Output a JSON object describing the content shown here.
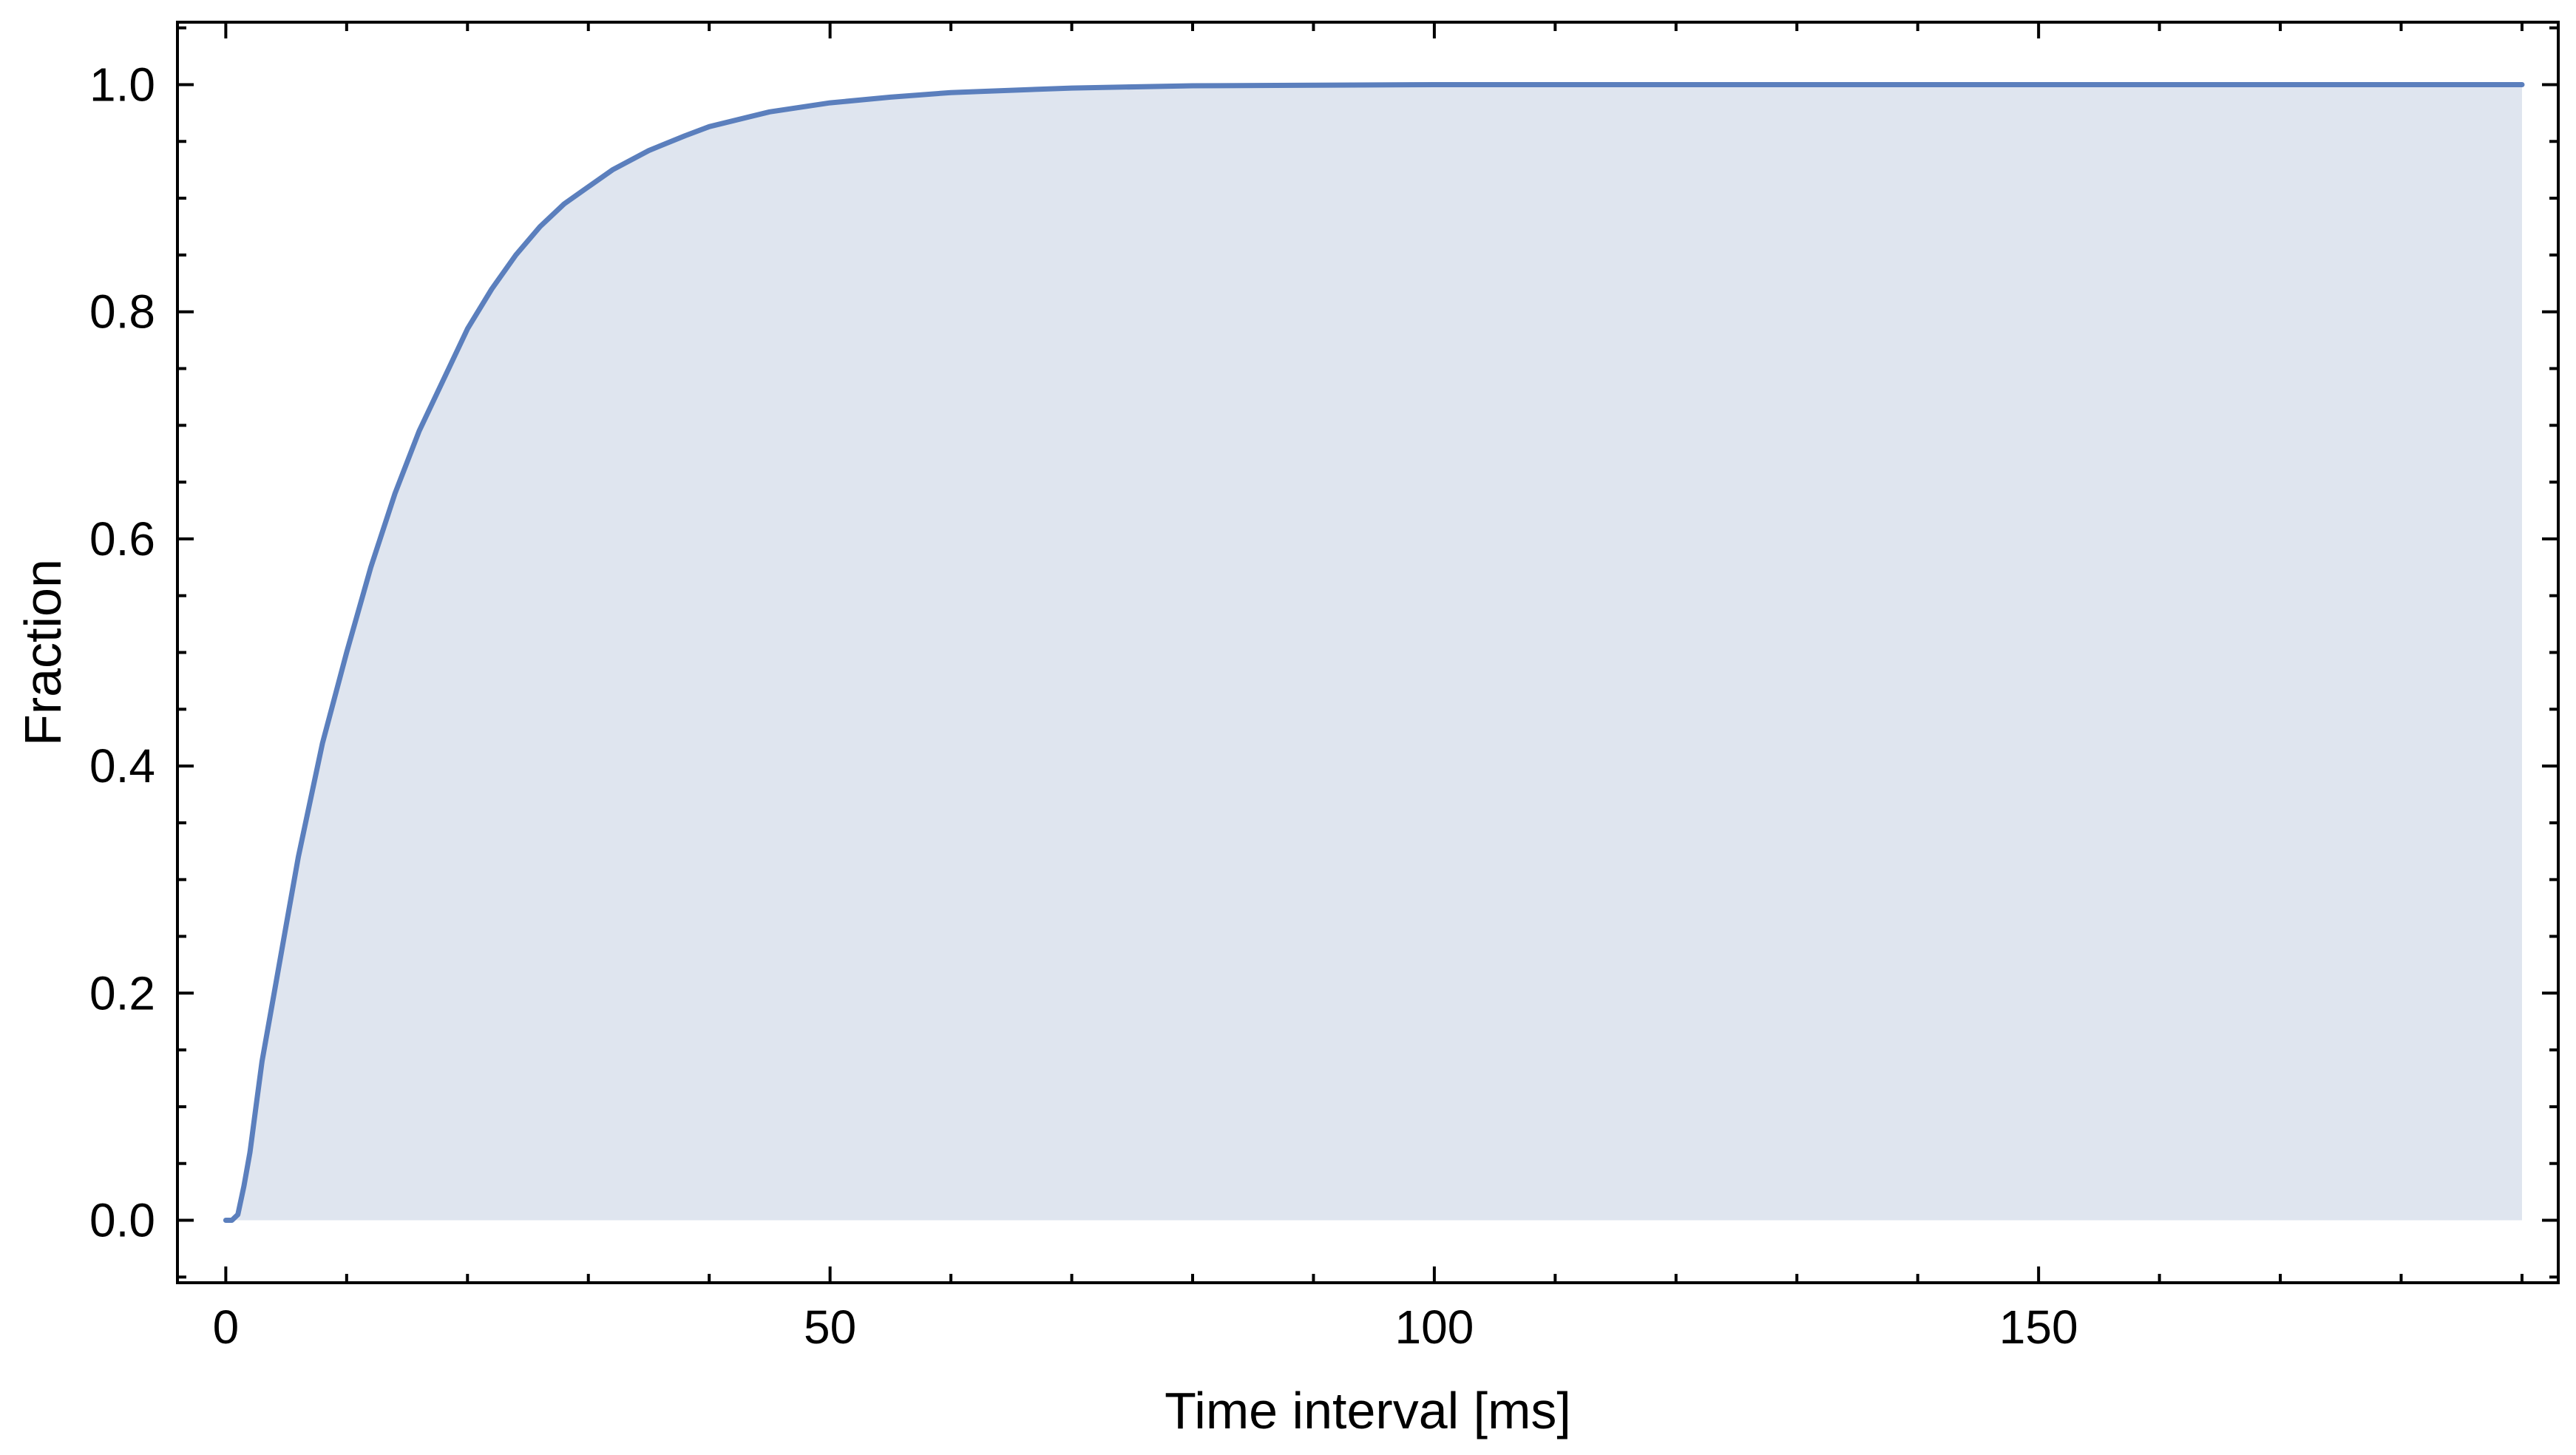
{
  "chart_data": {
    "type": "area",
    "title": "",
    "xlabel": "Time interval [ms]",
    "ylabel": "Fraction",
    "xlim": [
      -4,
      193
    ],
    "ylim": [
      -0.055,
      1.055
    ],
    "xticks": [
      0,
      50,
      100,
      150
    ],
    "xtick_labels": [
      "0",
      "50",
      "100",
      "150"
    ],
    "yticks": [
      0.0,
      0.2,
      0.4,
      0.6,
      0.8,
      1.0
    ],
    "ytick_labels": [
      "0.0",
      "0.2",
      "0.4",
      "0.6",
      "0.8",
      "1.0"
    ],
    "x_minor_step": 10,
    "y_minor_step": 0.05,
    "grid": false,
    "legend": "none",
    "colors": {
      "line": "#5b7fbd",
      "fill": "#dfe5ef",
      "frame": "#000000"
    },
    "series": [
      {
        "x": [
          0,
          0.5,
          1,
          1.5,
          2,
          2.5,
          3,
          4,
          5,
          6,
          7,
          8,
          10,
          12,
          14,
          16,
          18,
          20,
          22,
          24,
          26,
          28,
          30,
          32,
          35,
          38,
          40,
          45,
          50,
          55,
          60,
          70,
          80,
          90,
          100,
          110,
          120,
          150,
          190
        ],
        "y": [
          0.0,
          0.0,
          0.005,
          0.03,
          0.06,
          0.1,
          0.14,
          0.2,
          0.26,
          0.32,
          0.37,
          0.42,
          0.5,
          0.575,
          0.64,
          0.695,
          0.74,
          0.785,
          0.82,
          0.85,
          0.875,
          0.895,
          0.91,
          0.925,
          0.942,
          0.955,
          0.963,
          0.976,
          0.984,
          0.989,
          0.993,
          0.997,
          0.999,
          0.9995,
          1.0,
          1.0,
          1.0,
          1.0,
          1.0
        ]
      }
    ]
  }
}
